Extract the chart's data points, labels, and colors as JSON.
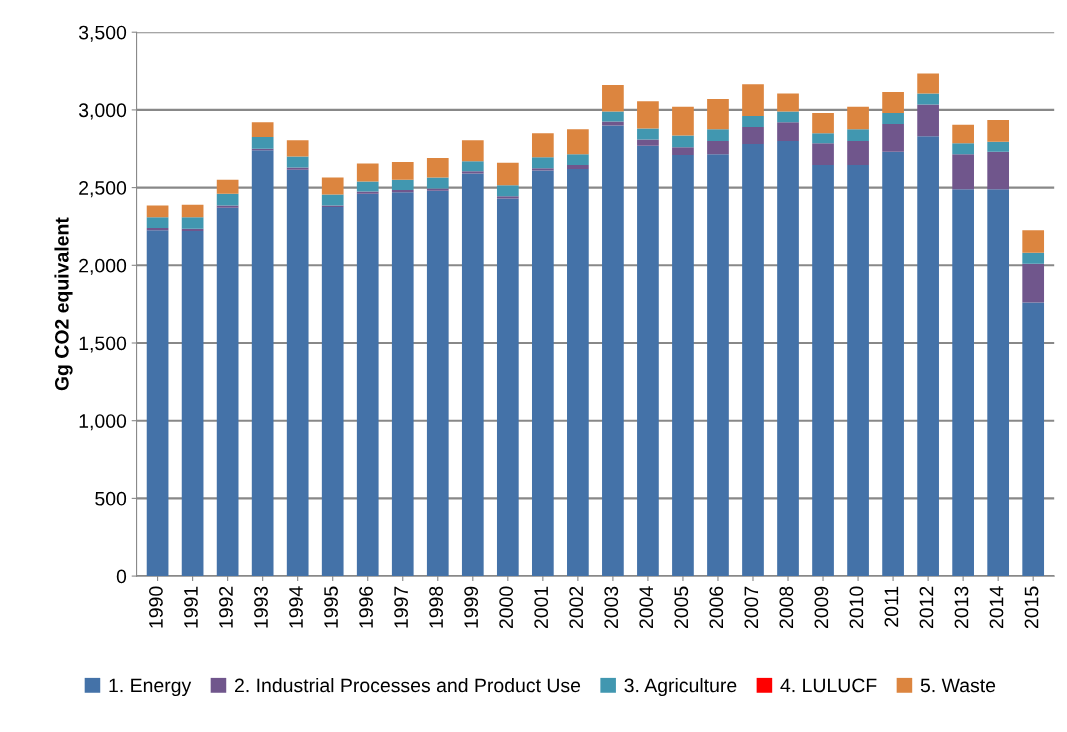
{
  "chart_data": {
    "type": "bar",
    "stacked": true,
    "ylabel": "Gg CO2 equivalent",
    "categories": [
      "1990",
      "1991",
      "1992",
      "1993",
      "1994",
      "1995",
      "1996",
      "1997",
      "1998",
      "1999",
      "2000",
      "2001",
      "2002",
      "2003",
      "2004",
      "2005",
      "2006",
      "2007",
      "2008",
      "2009",
      "2010",
      "2011",
      "2012",
      "2013",
      "2014",
      "2015"
    ],
    "series": [
      {
        "name": "1. Energy",
        "color": "#4472a8",
        "values": [
          2225,
          2220,
          2370,
          2740,
          2615,
          2375,
          2460,
          2470,
          2480,
          2590,
          2430,
          2610,
          2620,
          2900,
          2770,
          2710,
          2715,
          2780,
          2800,
          2645,
          2645,
          2730,
          2830,
          2490,
          2490,
          1760
        ]
      },
      {
        "name": "2. Industrial Processes and Product Use",
        "color": "#70568c",
        "values": [
          15,
          15,
          15,
          10,
          15,
          10,
          15,
          15,
          15,
          15,
          15,
          15,
          25,
          25,
          40,
          50,
          85,
          110,
          120,
          140,
          155,
          180,
          205,
          225,
          240,
          250
        ]
      },
      {
        "name": "3. Agriculture",
        "color": "#4197b0",
        "values": [
          70,
          75,
          75,
          75,
          70,
          70,
          65,
          65,
          70,
          65,
          70,
          70,
          70,
          65,
          70,
          75,
          75,
          70,
          70,
          65,
          75,
          70,
          70,
          70,
          65,
          70
        ]
      },
      {
        "name": "4. LULUCF",
        "color": "#ff0000",
        "values": [
          0,
          0,
          0,
          0,
          0,
          0,
          0,
          0,
          0,
          0,
          0,
          0,
          0,
          0,
          0,
          0,
          0,
          0,
          0,
          0,
          0,
          0,
          0,
          0,
          0,
          0
        ]
      },
      {
        "name": "5. Waste",
        "color": "#dc853f",
        "values": [
          75,
          80,
          90,
          95,
          105,
          110,
          115,
          115,
          125,
          135,
          145,
          155,
          160,
          170,
          175,
          185,
          195,
          205,
          115,
          130,
          145,
          135,
          130,
          120,
          140,
          145
        ]
      }
    ],
    "ylim": [
      0,
      3500
    ],
    "yticks": [
      {
        "value": 0,
        "label": "0"
      },
      {
        "value": 500,
        "label": "500"
      },
      {
        "value": 1000,
        "label": "1,000"
      },
      {
        "value": 1500,
        "label": "1,500"
      },
      {
        "value": 2000,
        "label": "2,000"
      },
      {
        "value": 2500,
        "label": "2,500"
      },
      {
        "value": 3000,
        "label": "3,000"
      },
      {
        "value": 3500,
        "label": "3,500"
      }
    ],
    "grid": "y",
    "legend": "bottom"
  }
}
